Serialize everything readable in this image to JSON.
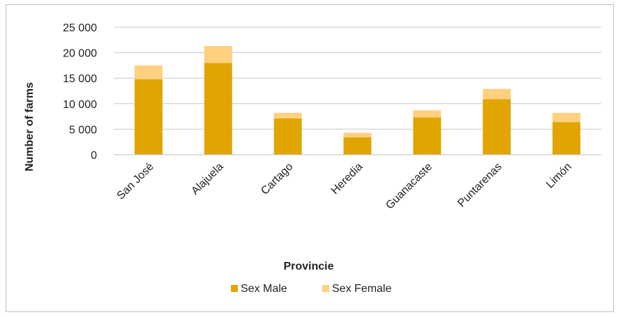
{
  "chart_data": {
    "type": "bar",
    "stacked": true,
    "title": "",
    "xlabel": "Provincie",
    "ylabel": "Number of farms",
    "categories": [
      "San José",
      "Alajuela",
      "Cartago",
      "Heredia",
      "Guanacaste",
      "Puntarenas",
      "Limón"
    ],
    "series": [
      {
        "name": "Sex Male",
        "color": "#E0A500",
        "values": [
          14800,
          18000,
          7100,
          3400,
          7300,
          10900,
          6400
        ]
      },
      {
        "name": "Sex Female",
        "color": "#FFD080",
        "values": [
          2700,
          3300,
          1100,
          900,
          1400,
          2000,
          1800
        ]
      }
    ],
    "ylim": [
      0,
      25000
    ],
    "yticks": [
      0,
      5000,
      10000,
      15000,
      20000,
      25000
    ],
    "ytick_labels": [
      "0",
      "5 000",
      "10 000",
      "15 000",
      "20 000",
      "25 000"
    ],
    "grid": true,
    "legend_position": "bottom",
    "colors": {
      "gridline": "#c8c8c8",
      "axis": "#bfbfbf",
      "text": "#222222"
    }
  }
}
